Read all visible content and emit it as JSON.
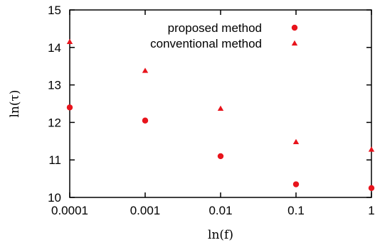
{
  "chart_data": {
    "type": "scatter",
    "xlabel": "ln(f)",
    "ylabel": "ln(τ)",
    "xscale": "log",
    "xlim": [
      0.0001,
      1
    ],
    "ylim": [
      10,
      15
    ],
    "x_ticks": [
      0.0001,
      0.001,
      0.01,
      0.1,
      1
    ],
    "x_tick_labels": [
      "0.0001",
      "0.001",
      "0.01",
      "0.1",
      "1"
    ],
    "y_ticks": [
      10,
      11,
      12,
      13,
      14,
      15
    ],
    "y_tick_labels": [
      "10",
      "11",
      "12",
      "13",
      "14",
      "15"
    ],
    "grid": false,
    "legend_position": "top-right",
    "color": "#e8141c",
    "series": [
      {
        "name": "proposed method",
        "marker": "circle",
        "x": [
          0.0001,
          0.001,
          0.01,
          0.1,
          1
        ],
        "y": [
          12.4,
          12.05,
          11.1,
          10.35,
          10.25
        ]
      },
      {
        "name": "conventional method",
        "marker": "triangle",
        "x": [
          0.0001,
          0.001,
          0.01,
          0.1,
          1
        ],
        "y": [
          14.15,
          13.38,
          12.37,
          11.48,
          11.28
        ]
      }
    ]
  }
}
